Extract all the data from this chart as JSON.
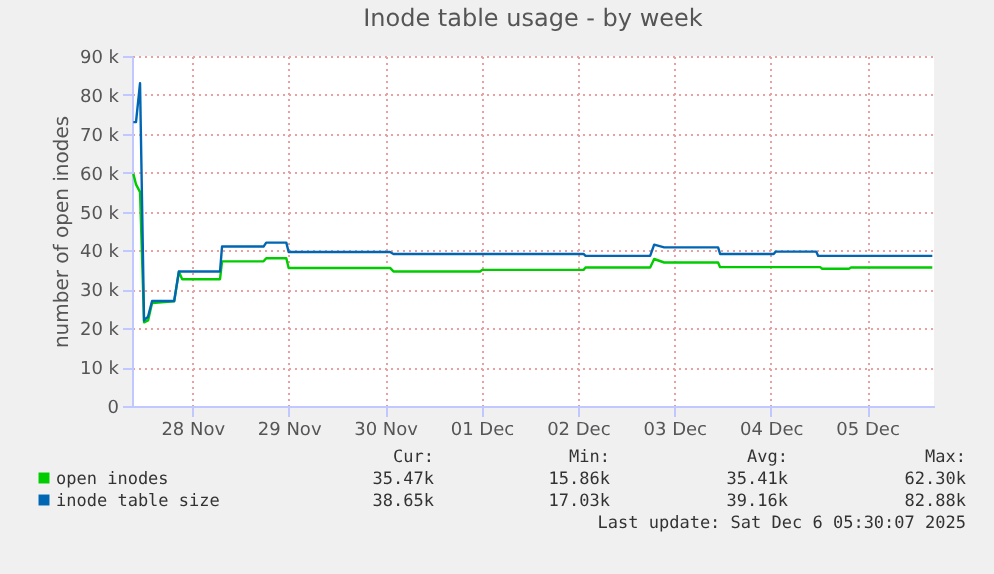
{
  "chart_data": {
    "type": "line",
    "title": "Inode table usage - by week",
    "ylabel": "number of open inodes",
    "xlim": [
      "2025-11-27T21:00",
      "2025-12-06T04:40"
    ],
    "xticks": [
      {
        "value": "2025-11-28T12:00",
        "label": "28 Nov"
      },
      {
        "value": "2025-11-29T12:00",
        "label": "29 Nov"
      },
      {
        "value": "2025-11-30T12:00",
        "label": "30 Nov"
      },
      {
        "value": "2025-12-01T12:00",
        "label": "01 Dec"
      },
      {
        "value": "2025-12-02T12:00",
        "label": "02 Dec"
      },
      {
        "value": "2025-12-03T12:00",
        "label": "03 Dec"
      },
      {
        "value": "2025-12-04T12:00",
        "label": "04 Dec"
      },
      {
        "value": "2025-12-05T12:00",
        "label": "05 Dec"
      }
    ],
    "ylim": [
      0,
      90000
    ],
    "yticks": [
      0,
      {
        "value": 10000,
        "label": "10 k"
      },
      {
        "value": 20000,
        "label": "20 k"
      },
      {
        "value": 30000,
        "label": "30 k"
      },
      {
        "value": 40000,
        "label": "40 k"
      },
      {
        "value": 50000,
        "label": "50 k"
      },
      {
        "value": 60000,
        "label": "60 k"
      },
      {
        "value": 70000,
        "label": "70 k"
      },
      {
        "value": 80000,
        "label": "80 k"
      },
      {
        "value": 90000,
        "label": "90 k"
      }
    ],
    "grid": true,
    "legend": "bottom",
    "marker": "none",
    "line_style": "solid",
    "series": [
      {
        "name": "open inodes",
        "color": "#00cc00",
        "x": [
          "2025-11-27T21:20",
          "2025-11-27T22:00",
          "2025-11-27T23:00",
          "2025-11-28T00:00",
          "2025-11-28T01:00",
          "2025-11-28T02:00",
          "2025-11-28T07:30",
          "2025-11-28T08:40",
          "2025-11-28T09:30",
          "2025-11-28T18:55",
          "2025-11-28T19:25",
          "2025-11-29T05:45",
          "2025-11-29T06:25",
          "2025-11-29T11:25",
          "2025-11-29T12:00",
          "2025-11-30T13:15",
          "2025-11-30T14:05",
          "2025-12-01T11:40",
          "2025-12-01T12:10",
          "2025-12-02T13:25",
          "2025-12-02T13:55",
          "2025-12-03T06:00",
          "2025-12-03T07:00",
          "2025-12-03T09:30",
          "2025-12-03T22:55",
          "2025-12-03T23:25",
          "2025-12-05T00:20",
          "2025-12-05T00:50",
          "2025-12-05T07:30",
          "2025-12-05T08:00",
          "2025-12-06T04:15"
        ],
        "values": [
          59700,
          57000,
          55000,
          21500,
          22000,
          26500,
          26900,
          34500,
          32600,
          32600,
          37200,
          37200,
          38000,
          38000,
          35500,
          35500,
          34600,
          34600,
          35000,
          35000,
          35600,
          35600,
          37800,
          36900,
          36900,
          35700,
          35700,
          35300,
          35300,
          35600,
          35600
        ]
      },
      {
        "name": "inode table size",
        "color": "#0066b3",
        "x": [
          "2025-11-27T21:20",
          "2025-11-27T22:00",
          "2025-11-27T23:00",
          "2025-11-28T00:00",
          "2025-11-28T01:00",
          "2025-11-28T02:00",
          "2025-11-28T07:30",
          "2025-11-28T08:40",
          "2025-11-28T18:55",
          "2025-11-28T19:25",
          "2025-11-29T05:45",
          "2025-11-29T06:25",
          "2025-11-29T11:25",
          "2025-11-29T12:00",
          "2025-11-30T13:15",
          "2025-11-30T14:05",
          "2025-12-02T13:25",
          "2025-12-02T13:55",
          "2025-12-03T06:00",
          "2025-12-03T07:00",
          "2025-12-03T09:30",
          "2025-12-03T22:55",
          "2025-12-03T23:25",
          "2025-12-04T12:45",
          "2025-12-04T13:15",
          "2025-12-04T23:20",
          "2025-12-04T23:50",
          "2025-12-06T04:15"
        ],
        "values": [
          73000,
          73000,
          83000,
          22000,
          23000,
          27000,
          27000,
          34600,
          34600,
          41000,
          41000,
          42000,
          42000,
          39600,
          39600,
          39100,
          39100,
          38600,
          38600,
          41500,
          40800,
          40800,
          39100,
          39100,
          39700,
          39700,
          38600,
          38600
        ]
      }
    ],
    "annotations": [
      "Cur:",
      "Min:",
      "Avg:",
      "Max:",
      "35.47k",
      "15.86k",
      "35.41k",
      "62.30k",
      "38.65k",
      "17.03k",
      "39.16k",
      "82.88k",
      "Last update: Sat Dec  6 05:30:07 2025"
    ]
  }
}
